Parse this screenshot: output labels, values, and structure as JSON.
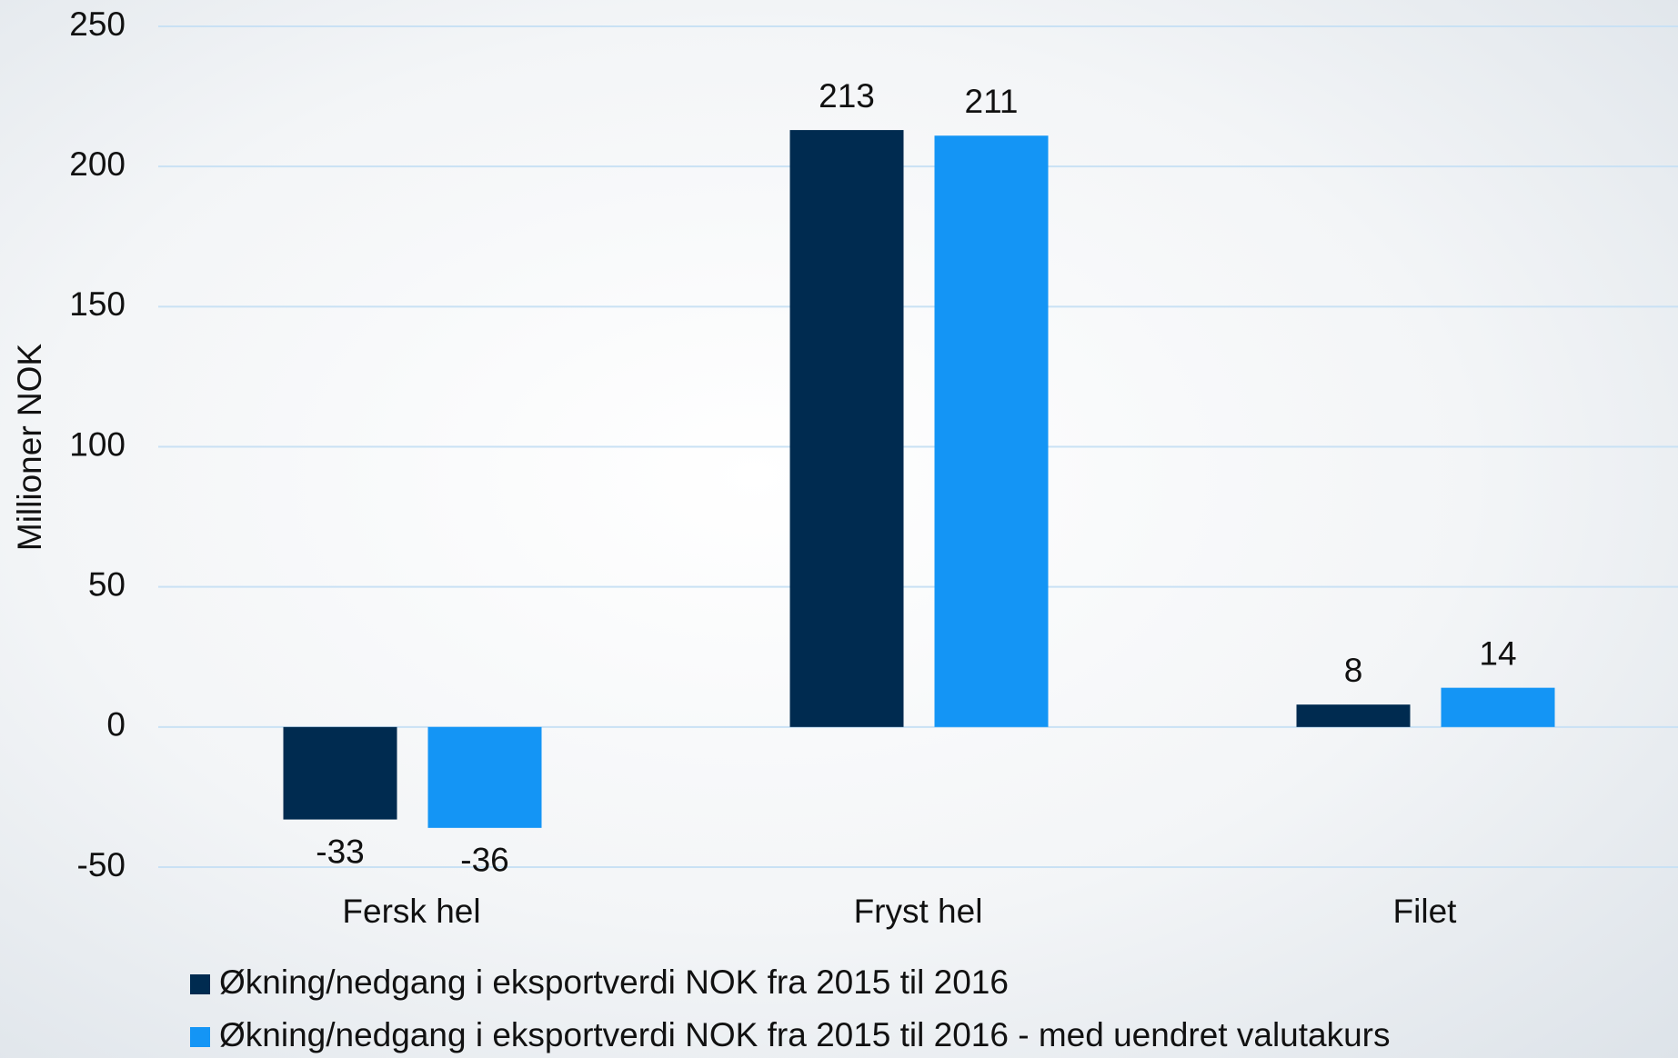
{
  "chart_data": {
    "type": "bar",
    "y_label": "Millioner NOK",
    "categories": [
      "Fersk hel",
      "Fryst hel",
      "Filet"
    ],
    "series": [
      {
        "name": "Økning/nedgang i eksportverdi NOK fra 2015 til 2016",
        "color": "#002b50",
        "values": [
          -33,
          213,
          8
        ]
      },
      {
        "name": "Økning/nedgang i eksportverdi NOK fra 2015 til 2016 - med uendret valutakurs",
        "color": "#1495f5",
        "values": [
          -36,
          211,
          14
        ]
      }
    ],
    "ylim": [
      -50,
      250
    ],
    "yticks": [
      -50,
      0,
      50,
      100,
      150,
      200,
      250
    ],
    "grid": true,
    "legend": "bottom"
  }
}
